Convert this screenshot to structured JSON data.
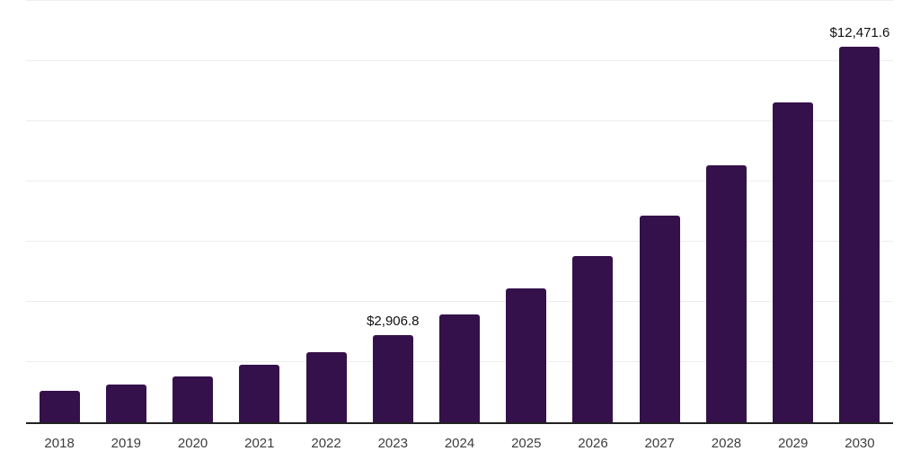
{
  "chart_data": {
    "type": "bar",
    "title": "",
    "xlabel": "",
    "ylabel": "",
    "categories": [
      "2018",
      "2019",
      "2020",
      "2021",
      "2022",
      "2023",
      "2024",
      "2025",
      "2026",
      "2027",
      "2028",
      "2029",
      "2030"
    ],
    "values": [
      1045,
      1245,
      1520,
      1900,
      2340,
      2906.8,
      3580,
      4450,
      5520,
      6870,
      8540,
      10630,
      12471.6
    ],
    "value_labels": [
      {
        "category": "2023",
        "text": "$2,906.8"
      },
      {
        "category": "2030",
        "text": "$12,471.6"
      }
    ],
    "ylim": [
      0,
      14000
    ],
    "grid_step": 2000,
    "grid": true,
    "legend": false,
    "y_tick_labels_shown": false,
    "colors": {
      "bar": "#35114B",
      "gridline": "#EDEDED",
      "axis_line": "#222222",
      "tick_label": "#3D3D3D",
      "value_label": "#111111",
      "background": "#FFFFFF"
    }
  }
}
